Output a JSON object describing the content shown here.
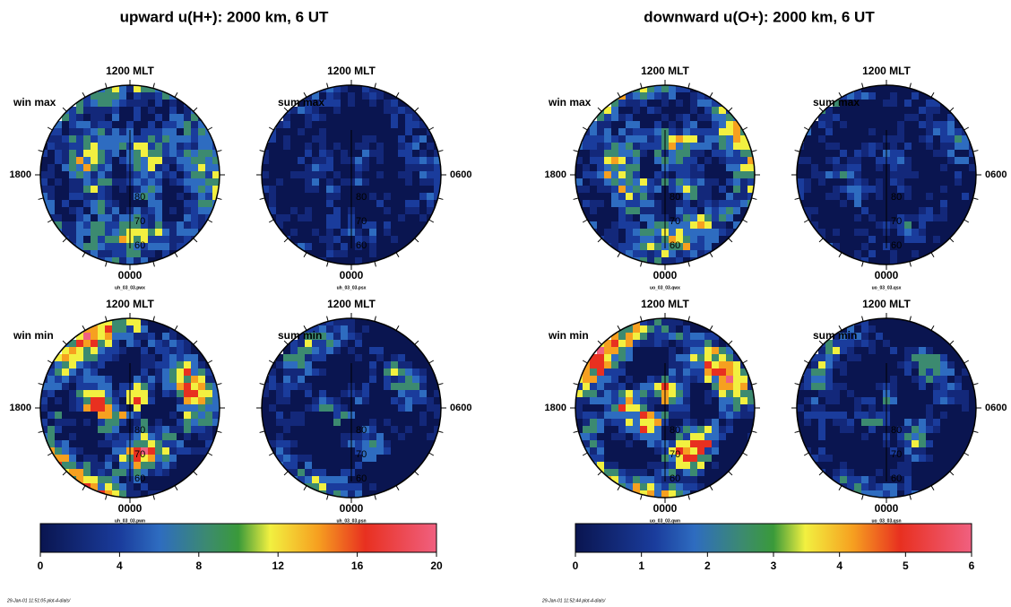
{
  "figures": [
    {
      "title": "upward u(H+): 2000 km, 6 UT",
      "panels": [
        {
          "label": "win max",
          "top": "1200 MLT",
          "bottom": "0000",
          "side": "1800",
          "file": "uh_03_03.pwx"
        },
        {
          "label": "sum max",
          "top": "1200 MLT",
          "bottom": "0000",
          "side": "0600",
          "file": "uh_03_03.psx"
        },
        {
          "label": "win min",
          "top": "1200 MLT",
          "bottom": "0000",
          "side": "1800",
          "file": "uh_03_03.pwn"
        },
        {
          "label": "sum min",
          "top": "1200 MLT",
          "bottom": "0000",
          "side": "0600",
          "file": "uh_03_03.psn"
        }
      ],
      "rings": [
        "80",
        "70",
        "60"
      ],
      "colorbar_ticks": [
        0,
        4,
        8,
        12,
        16,
        20
      ],
      "footer": "29-Jan-01 11:51:05 plot-4-dials/"
    },
    {
      "title": "downward u(O+): 2000 km, 6 UT",
      "panels": [
        {
          "label": "win max",
          "top": "1200 MLT",
          "bottom": "0000",
          "side": "1800",
          "file": "uo_03_03.qwx"
        },
        {
          "label": "sum max",
          "top": "1200 MLT",
          "bottom": "0000",
          "side": "0600",
          "file": "uo_03_03.qsx"
        },
        {
          "label": "win min",
          "top": "1200 MLT",
          "bottom": "0000",
          "side": "1800",
          "file": "uo_03_03.qwn"
        },
        {
          "label": "sum min",
          "top": "1200 MLT",
          "bottom": "0000",
          "side": "0600",
          "file": "uo_03_03.qsn"
        }
      ],
      "rings": [
        "80",
        "70",
        "60"
      ],
      "colorbar_ticks": [
        0,
        1,
        2,
        3,
        4,
        5,
        6
      ],
      "footer": "29-Jan-01 11:52:44 plot-4-dials/"
    }
  ]
}
